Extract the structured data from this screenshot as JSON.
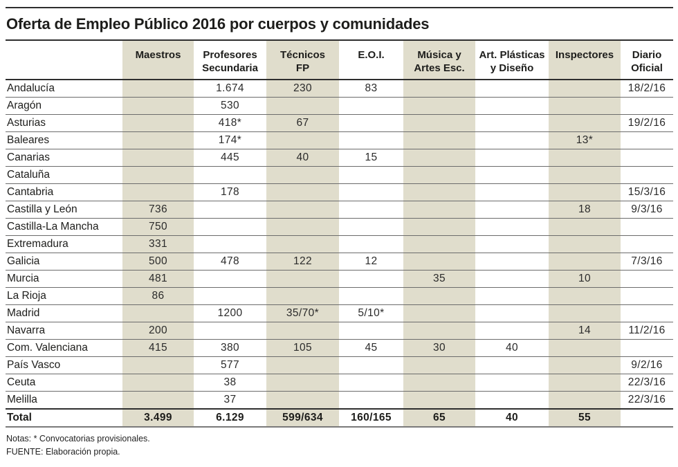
{
  "title": "Oferta de Empleo Público 2016 por cuerpos y comunidades",
  "chart_data": {
    "type": "table",
    "title": "Oferta de Empleo Público 2016 por cuerpos y comunidades",
    "columns": [
      "",
      "Maestros",
      "Profesores\nSecundaria",
      "Técnicos\nFP",
      "E.O.I.",
      "Música y\nArtes Esc.",
      "Art. Plásticas\ny Diseño",
      "Inspectores",
      "Diario\nOficial"
    ],
    "rows": [
      [
        "Andalucía",
        "",
        "1.674",
        "230",
        "83",
        "",
        "",
        "",
        "18/2/16"
      ],
      [
        "Aragón",
        "",
        "530",
        "",
        "",
        "",
        "",
        "",
        ""
      ],
      [
        "Asturias",
        "",
        "418*",
        "67",
        "",
        "",
        "",
        "",
        "19/2/16"
      ],
      [
        "Baleares",
        "",
        "174*",
        "",
        "",
        "",
        "",
        "13*",
        ""
      ],
      [
        "Canarias",
        "",
        "445",
        "40",
        "15",
        "",
        "",
        "",
        ""
      ],
      [
        "Cataluña",
        "",
        "",
        "",
        "",
        "",
        "",
        "",
        ""
      ],
      [
        "Cantabria",
        "",
        "178",
        "",
        "",
        "",
        "",
        "",
        "15/3/16"
      ],
      [
        "Castilla y León",
        "736",
        "",
        "",
        "",
        "",
        "",
        "18",
        "9/3/16"
      ],
      [
        "Castilla-La Mancha",
        "750",
        "",
        "",
        "",
        "",
        "",
        "",
        ""
      ],
      [
        "Extremadura",
        "331",
        "",
        "",
        "",
        "",
        "",
        "",
        ""
      ],
      [
        "Galicia",
        "500",
        "478",
        "122",
        "12",
        "",
        "",
        "",
        "7/3/16"
      ],
      [
        "Murcia",
        "481",
        "",
        "",
        "",
        "35",
        "",
        "10",
        ""
      ],
      [
        "La Rioja",
        "86",
        "",
        "",
        "",
        "",
        "",
        "",
        ""
      ],
      [
        "Madrid",
        "",
        "1200",
        "35/70*",
        "5/10*",
        "",
        "",
        "",
        ""
      ],
      [
        "Navarra",
        "200",
        "",
        "",
        "",
        "",
        "",
        "14",
        "11/2/16"
      ],
      [
        "Com. Valenciana",
        "415",
        "380",
        "105",
        "45",
        "30",
        "40",
        "",
        ""
      ],
      [
        "País Vasco",
        "",
        "577",
        "",
        "",
        "",
        "",
        "",
        "9/2/16"
      ],
      [
        "Ceuta",
        "",
        "38",
        "",
        "",
        "",
        "",
        "",
        "22/3/16"
      ],
      [
        "Melilla",
        "",
        "37",
        "",
        "",
        "",
        "",
        "",
        "22/3/16"
      ]
    ],
    "total_row": [
      "Total",
      "3.499",
      "6.129",
      "599/634",
      "160/165",
      "65",
      "40",
      "55",
      ""
    ],
    "shaded_columns": [
      1,
      3,
      5,
      7
    ],
    "shaded_color": "#e0ddcc",
    "notes": "Notas: * Convocatorias provisionales.",
    "source": "FUENTE: Elaboración propia.",
    "layout": {
      "grid": "horizontal rules only",
      "legend": "none"
    }
  }
}
